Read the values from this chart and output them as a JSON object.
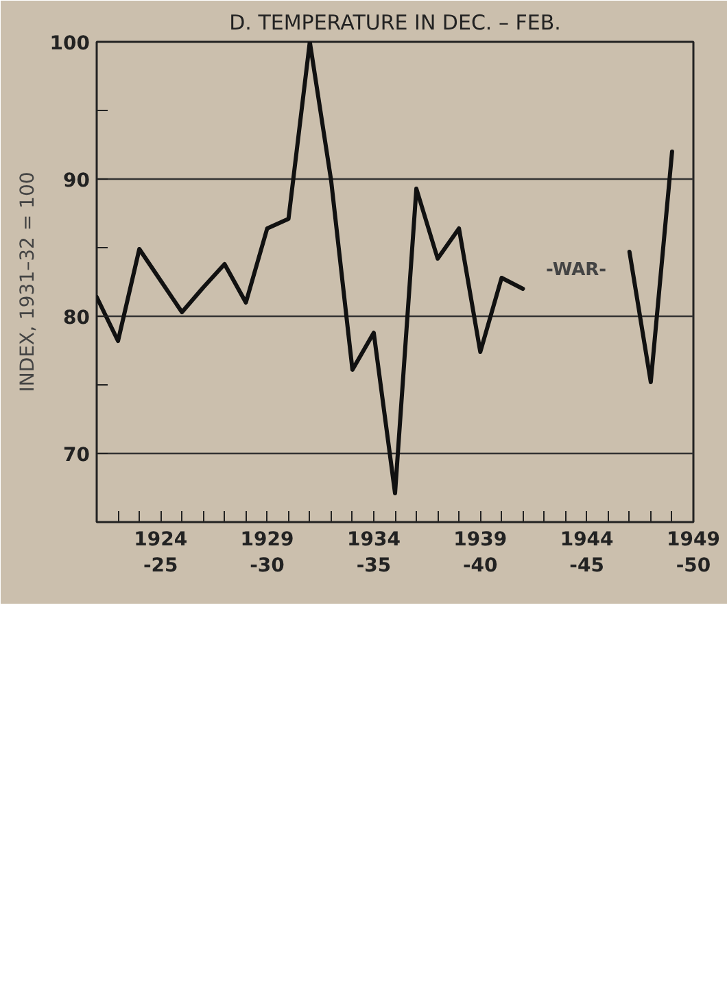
{
  "chart_data": {
    "type": "line",
    "title": "D. TEMPERATURE IN DEC. – FEB.",
    "ylabel": "INDEX, 1931–32 = 100",
    "categories": [
      null,
      null,
      null,
      "1924\n-25",
      null,
      null,
      null,
      null,
      "1929\n-30",
      null,
      null,
      null,
      null,
      "1934\n-35",
      null,
      null,
      null,
      null,
      "1939\n-40",
      null,
      null,
      null,
      null,
      "1944\n-45",
      null,
      null,
      null,
      null,
      "1949\n-50"
    ],
    "series": [
      {
        "color": "#111111",
        "values": [
          81.4,
          78.2,
          84.9,
          82.6,
          80.3,
          82.1,
          83.8,
          81.0,
          86.4,
          87.1,
          100,
          89.9,
          76.1,
          78.8,
          67.1,
          89.3,
          84.2,
          86.4,
          77.4,
          82.8,
          82.0,
          null,
          null,
          null,
          null,
          84.7,
          75.2,
          92.0,
          null
        ]
      }
    ],
    "annotations": [
      "-WAR-"
    ],
    "ylim": [
      65,
      100
    ],
    "yticks": [
      70,
      {
        "value": 75,
        "label": null
      },
      80,
      {
        "value": 85,
        "label": null
      },
      90,
      {
        "value": 95,
        "label": null
      },
      100
    ],
    "grid": "y",
    "line_style": "solid",
    "marker": "none"
  }
}
